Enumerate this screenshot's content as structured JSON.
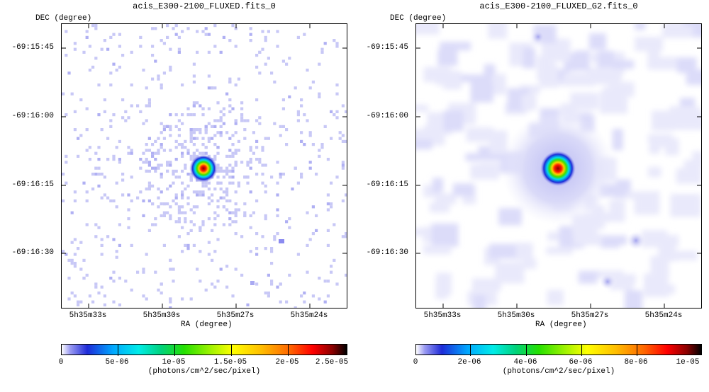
{
  "panels": [
    {
      "title": "acis_E300-2100_FLUXED.fits_0",
      "y_axis_label": "DEC (degree)",
      "x_axis_label": "RA (degree)",
      "dec_ticks": [
        "-69:15:45",
        "-69:16:00",
        "-69:16:15",
        "-69:16:30"
      ],
      "ra_ticks": [
        "5h35m33s",
        "5h35m30s",
        "5h35m27s",
        "5h35m24s"
      ],
      "colorbar": {
        "tick_labels": [
          "0",
          "5e-06",
          "1e-05",
          "1.5e-05",
          "2e-05",
          "2.5e-05"
        ],
        "unit": "(photons/cm^2/sec/pixel)"
      }
    },
    {
      "title": "acis_E300-2100_FLUXED_G2.fits_0",
      "y_axis_label": "DEC (degree)",
      "x_axis_label": "RA (degree)",
      "dec_ticks": [
        "-69:15:45",
        "-69:16:00",
        "-69:16:15",
        "-69:16:30"
      ],
      "ra_ticks": [
        "5h35m33s",
        "5h35m30s",
        "5h35m27s",
        "5h35m24s"
      ],
      "colorbar": {
        "tick_labels": [
          "0",
          "2e-06",
          "4e-06",
          "6e-06",
          "8e-06",
          "1e-05"
        ],
        "unit": "(photons/cm^2/sec/pixel)"
      }
    }
  ],
  "colors": {
    "background_pixel": "#ffffff",
    "faint_pixel": "#c8c8f6",
    "source_peak": "#8a0000"
  }
}
